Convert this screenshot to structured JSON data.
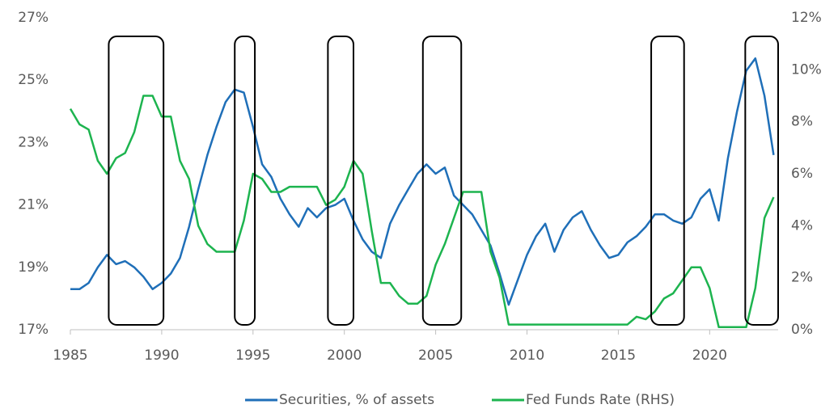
{
  "chart_data": {
    "type": "line",
    "x": [
      1985,
      1985.5,
      1986,
      1986.5,
      1987,
      1987.5,
      1988,
      1988.5,
      1989,
      1989.5,
      1990,
      1990.5,
      1991,
      1991.5,
      1992,
      1992.5,
      1993,
      1993.5,
      1994,
      1994.5,
      1995,
      1995.5,
      1996,
      1996.5,
      1997,
      1997.5,
      1998,
      1998.5,
      1999,
      1999.5,
      2000,
      2000.5,
      2001,
      2001.5,
      2002,
      2002.5,
      2003,
      2003.5,
      2004,
      2004.5,
      2005,
      2005.5,
      2006,
      2006.5,
      2007,
      2007.5,
      2008,
      2008.5,
      2009,
      2009.5,
      2010,
      2010.5,
      2011,
      2011.5,
      2012,
      2012.5,
      2013,
      2013.5,
      2014,
      2014.5,
      2015,
      2015.5,
      2016,
      2016.5,
      2017,
      2017.5,
      2018,
      2018.5,
      2019,
      2019.5,
      2020,
      2020.5,
      2021,
      2021.5,
      2022,
      2022.5,
      2023,
      2023.5
    ],
    "series": [
      {
        "name": "Securities, % of assets",
        "color": "#1f6fb8",
        "axis": "y",
        "values": [
          18.3,
          18.3,
          18.5,
          19.0,
          19.4,
          19.1,
          19.2,
          19.0,
          18.7,
          18.3,
          18.5,
          18.8,
          19.3,
          20.3,
          21.5,
          22.6,
          23.5,
          24.3,
          24.7,
          24.6,
          23.5,
          22.3,
          21.9,
          21.2,
          20.7,
          20.3,
          20.9,
          20.6,
          20.9,
          21.0,
          21.2,
          20.5,
          19.9,
          19.5,
          19.3,
          20.4,
          21.0,
          21.5,
          22.0,
          22.3,
          22.0,
          22.2,
          21.3,
          21.0,
          20.7,
          20.2,
          19.7,
          18.8,
          17.8,
          18.6,
          19.4,
          20.0,
          20.4,
          19.5,
          20.2,
          20.6,
          20.8,
          20.2,
          19.7,
          19.3,
          19.4,
          19.8,
          20.0,
          20.3,
          20.7,
          20.7,
          20.5,
          20.4,
          20.6,
          21.2,
          21.5,
          20.5,
          22.5,
          24.0,
          25.3,
          25.7,
          24.5,
          22.6
        ]
      },
      {
        "name": "Fed Funds Rate (RHS)",
        "color": "#1db44f",
        "axis": "y2",
        "values": [
          8.5,
          7.9,
          7.7,
          6.5,
          6.0,
          6.6,
          6.8,
          7.6,
          9.0,
          9.0,
          8.2,
          8.2,
          6.5,
          5.8,
          4.0,
          3.3,
          3.0,
          3.0,
          3.0,
          4.2,
          6.0,
          5.8,
          5.3,
          5.3,
          5.5,
          5.5,
          5.5,
          5.5,
          4.8,
          5.0,
          5.5,
          6.5,
          6.0,
          3.8,
          1.8,
          1.8,
          1.3,
          1.0,
          1.0,
          1.3,
          2.5,
          3.3,
          4.3,
          5.3,
          5.3,
          5.3,
          3.0,
          2.0,
          0.2,
          0.2,
          0.2,
          0.2,
          0.2,
          0.2,
          0.2,
          0.2,
          0.2,
          0.2,
          0.2,
          0.2,
          0.2,
          0.2,
          0.5,
          0.4,
          0.7,
          1.2,
          1.4,
          1.9,
          2.4,
          2.4,
          1.6,
          0.1,
          0.1,
          0.1,
          0.1,
          1.6,
          4.3,
          5.1
        ]
      }
    ],
    "xlim": [
      1985,
      2023.75
    ],
    "xticks": [
      1985,
      1990,
      1995,
      2000,
      2005,
      2010,
      2015,
      2020
    ],
    "ylim": [
      17,
      27
    ],
    "yticks": [
      {
        "value": 17,
        "label": "17%"
      },
      {
        "value": 19,
        "label": "19%"
      },
      {
        "value": 21,
        "label": "21%"
      },
      {
        "value": 23,
        "label": "23%"
      },
      {
        "value": 25,
        "label": "25%"
      },
      {
        "value": 27,
        "label": "27%"
      }
    ],
    "y2lim": [
      0,
      12
    ],
    "y2ticks": [
      {
        "value": 0,
        "label": "0%"
      },
      {
        "value": 2,
        "label": "2%"
      },
      {
        "value": 4,
        "label": "4%"
      },
      {
        "value": 6,
        "label": "6%"
      },
      {
        "value": 8,
        "label": "8%"
      },
      {
        "value": 10,
        "label": "10%"
      },
      {
        "value": 12,
        "label": "12%"
      }
    ],
    "highlights": [
      [
        1987.1,
        1990.1
      ],
      [
        1994.0,
        1995.1
      ],
      [
        1999.1,
        2000.5
      ],
      [
        2004.3,
        2006.4
      ],
      [
        2016.8,
        2018.6
      ],
      [
        2021.95,
        2023.75
      ]
    ],
    "legend": "bottom"
  }
}
